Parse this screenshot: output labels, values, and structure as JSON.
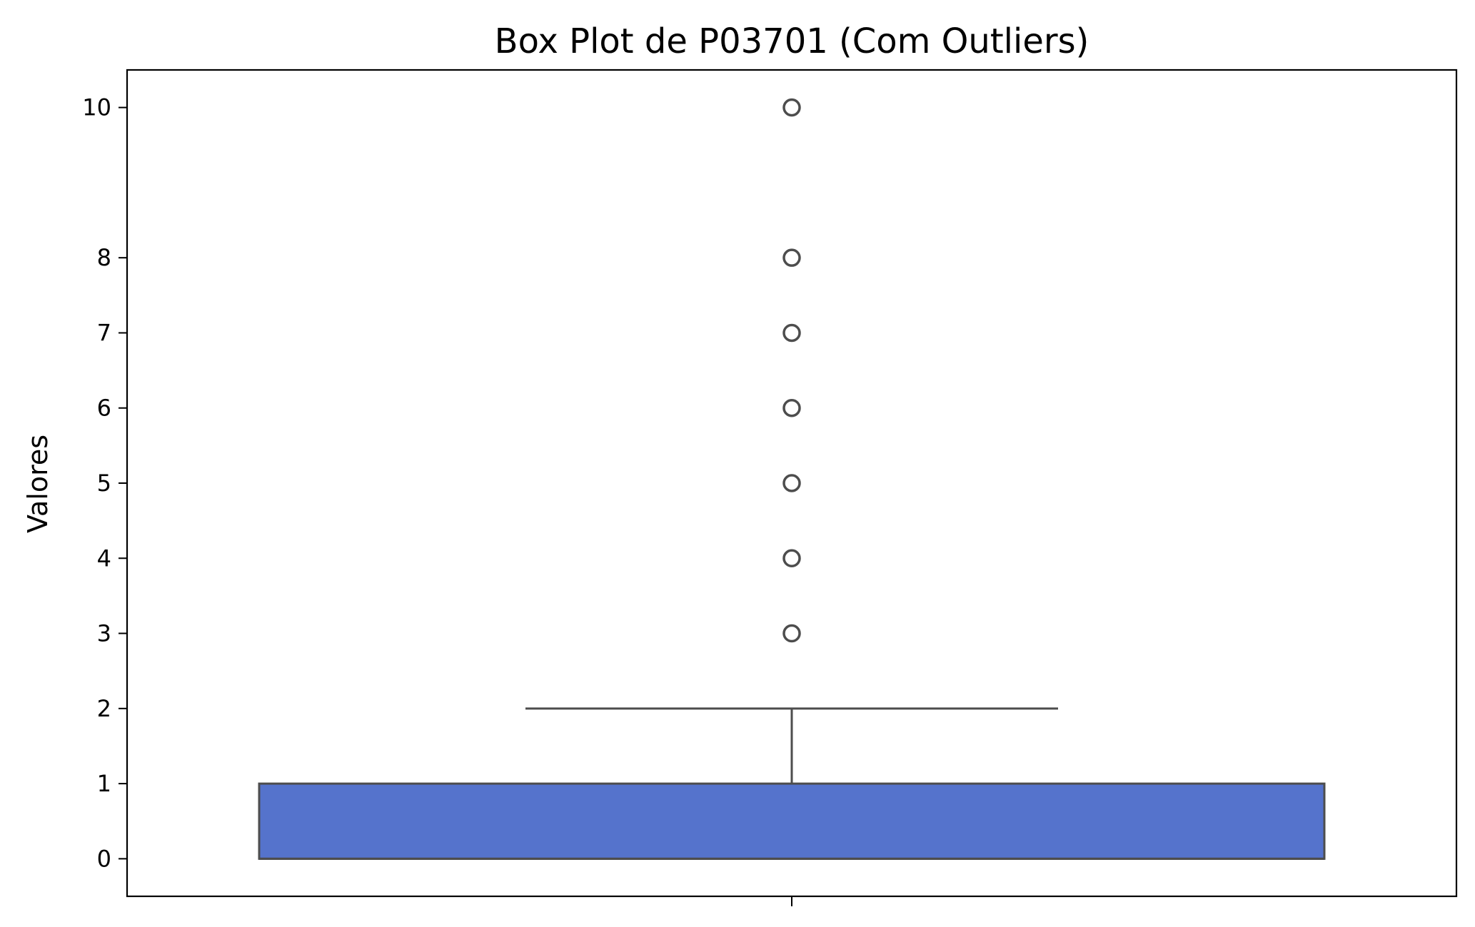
{
  "chart_data": {
    "type": "box",
    "title": "Box Plot de P03701 (Com Outliers)",
    "xlabel": "",
    "ylabel": "Valores",
    "ylim": [
      -0.5,
      10.5
    ],
    "yticks": [
      0,
      1,
      2,
      3,
      4,
      5,
      6,
      7,
      8,
      10
    ],
    "grid": false,
    "box": {
      "whisker_low": 0,
      "q1": 0,
      "median": 0,
      "q3": 1,
      "whisker_high": 2,
      "color": "#5573CC",
      "edge_color": "#4D4D4D",
      "outliers": [
        3,
        4,
        5,
        6,
        7,
        8,
        10
      ]
    }
  }
}
